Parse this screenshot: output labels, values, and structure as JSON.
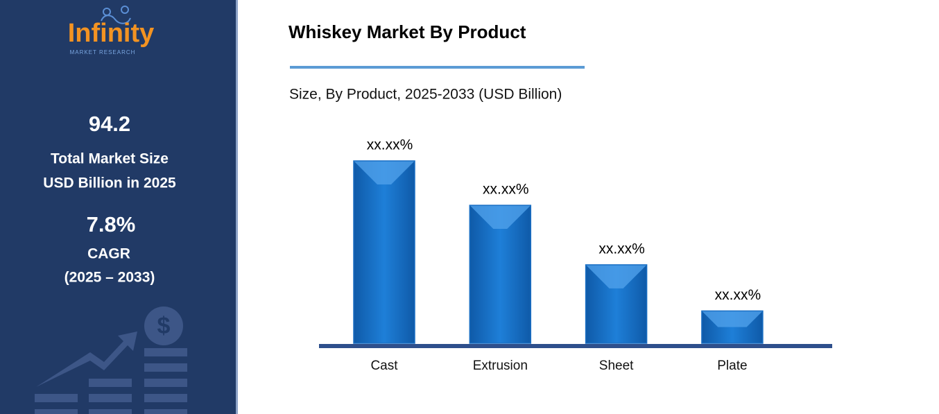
{
  "sidebar": {
    "logo": "Infinity",
    "logo_sub": "MARKET RESEARCH",
    "market_size": "94.2",
    "market_size_label_1": "Total Market Size",
    "market_size_label_2": "USD Billion in 2025",
    "cagr": "7.8%",
    "cagr_label": "CAGR",
    "cagr_period": "(2025 – 2033)"
  },
  "chart_data": {
    "type": "bar",
    "title": "Whiskey Market By Product",
    "subtitle": "Size, By Product, 2025-2033 (USD Billion)",
    "categories": [
      "Cast",
      "Extrusion",
      "Sheet",
      "Plate"
    ],
    "values": [
      42.3,
      32.0,
      18.2,
      7.5
    ],
    "value_labels": [
      "xx.xx%",
      "xx.xx%",
      "xx.xx%",
      "xx.xx%"
    ],
    "color": "#1a6fc4"
  }
}
